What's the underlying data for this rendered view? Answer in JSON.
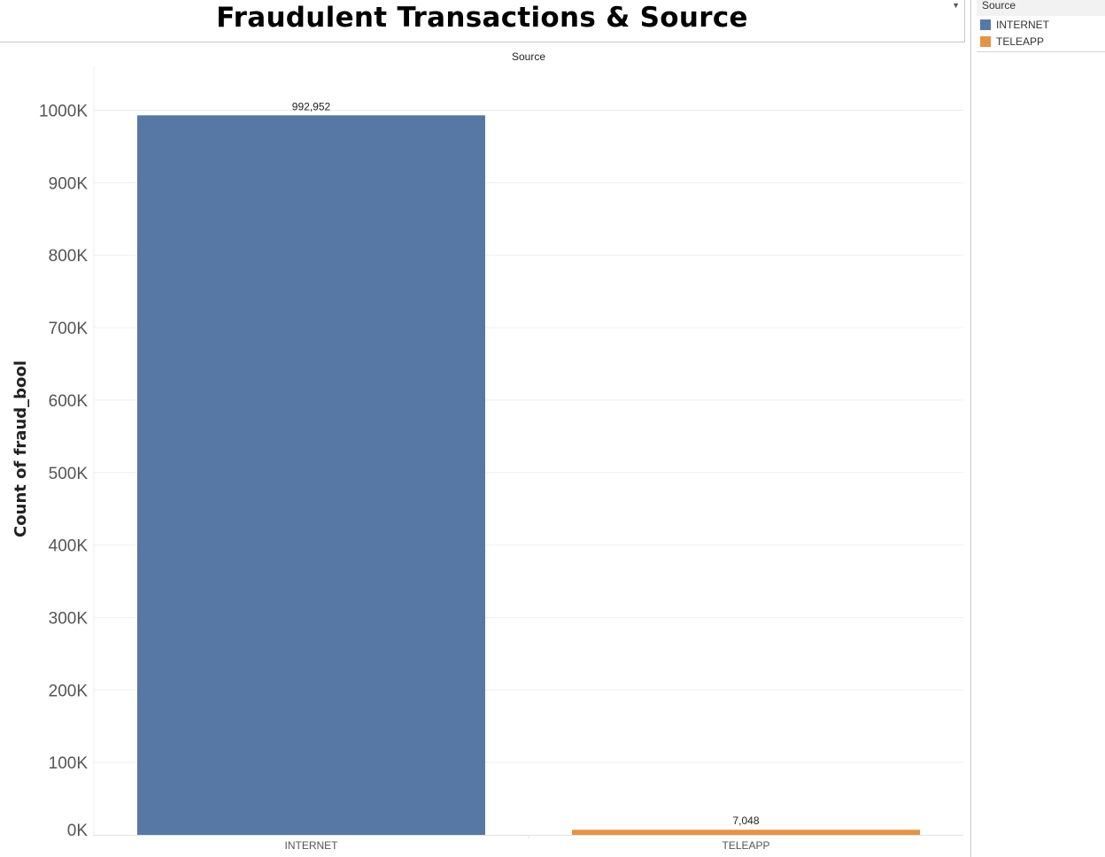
{
  "title": "Fraudulent Transactions & Source",
  "legend": {
    "title": "Source",
    "items": [
      {
        "label": "INTERNET",
        "color": "#5778a4"
      },
      {
        "label": "TELEAPP",
        "color": "#e49444"
      }
    ]
  },
  "chart_data": {
    "type": "bar",
    "title": "Fraudulent Transactions & Source",
    "column_header": "Source",
    "xlabel": "",
    "ylabel": "Count of fraud_bool",
    "categories": [
      "INTERNET",
      "TELEAPP"
    ],
    "values": [
      992952,
      7048
    ],
    "data_labels": [
      "992,952",
      "7,048"
    ],
    "colors": [
      "#5778a4",
      "#e49444"
    ],
    "ylim": [
      0,
      1000000
    ],
    "yticks": [
      0,
      100000,
      200000,
      300000,
      400000,
      500000,
      600000,
      700000,
      800000,
      900000,
      1000000
    ],
    "ytick_labels": [
      "0K",
      "100K",
      "200K",
      "300K",
      "400K",
      "500K",
      "600K",
      "700K",
      "800K",
      "900K",
      "1000K"
    ],
    "grid": true,
    "legend_position": "top-right"
  }
}
